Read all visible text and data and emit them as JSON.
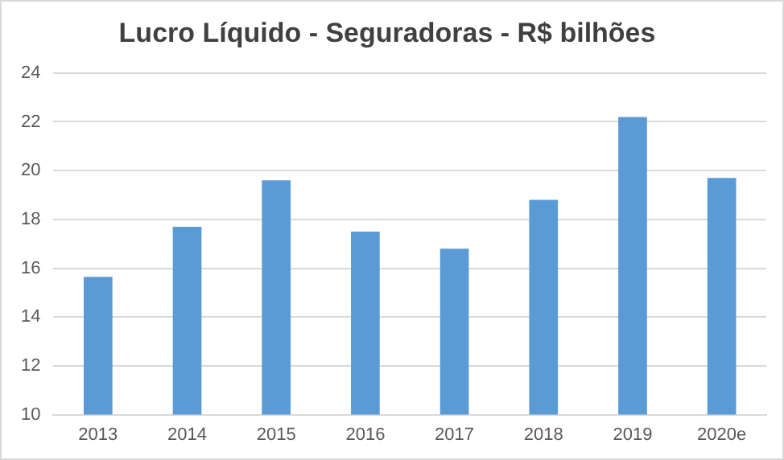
{
  "chart_data": {
    "type": "bar",
    "title": "Lucro Líquido - Seguradoras - R$ bilhões",
    "categories": [
      "2013",
      "2014",
      "2015",
      "2016",
      "2017",
      "2018",
      "2019",
      "2020e"
    ],
    "values": [
      15.65,
      17.7,
      19.6,
      17.5,
      16.8,
      18.8,
      22.2,
      19.7
    ],
    "color": "#5b9bd5",
    "ylim": [
      10,
      24
    ],
    "yticks": [
      10,
      12,
      14,
      16,
      18,
      20,
      22,
      24
    ],
    "grid": "y",
    "legend": false
  }
}
